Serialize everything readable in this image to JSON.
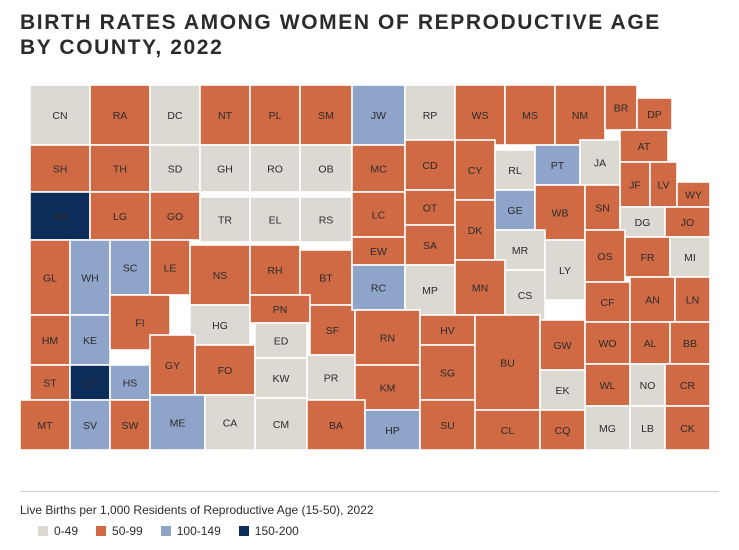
{
  "title": {
    "line1": "BIRTH RATES AMONG WOMEN OF REPRODUCTIVE AGE",
    "line2": "BY COUNTY, 2022"
  },
  "colors": {
    "0-49": "#dcd8d2",
    "50-99": "#cf6a45",
    "100-149": "#8fa4c9",
    "150-200": "#0c2d5a"
  },
  "legend": {
    "title": "Live Births per 1,000 Residents of Reproductive Age (15-50), 2022",
    "items": [
      {
        "label": "0-49",
        "cls": "0-49"
      },
      {
        "label": "50-99",
        "cls": "50-99"
      },
      {
        "label": "100-149",
        "cls": "100-149"
      },
      {
        "label": "150-200",
        "cls": "150-200"
      }
    ]
  },
  "counties": [
    {
      "abbr": "CN",
      "cls": "0-49"
    },
    {
      "abbr": "RA",
      "cls": "50-99"
    },
    {
      "abbr": "DC",
      "cls": "0-49"
    },
    {
      "abbr": "NT",
      "cls": "50-99"
    },
    {
      "abbr": "PL",
      "cls": "50-99"
    },
    {
      "abbr": "SM",
      "cls": "50-99"
    },
    {
      "abbr": "JW",
      "cls": "100-149"
    },
    {
      "abbr": "RP",
      "cls": "0-49"
    },
    {
      "abbr": "WS",
      "cls": "50-99"
    },
    {
      "abbr": "MS",
      "cls": "50-99"
    },
    {
      "abbr": "NM",
      "cls": "50-99"
    },
    {
      "abbr": "BR",
      "cls": "50-99"
    },
    {
      "abbr": "DP",
      "cls": "50-99"
    },
    {
      "abbr": "SH",
      "cls": "50-99"
    },
    {
      "abbr": "TH",
      "cls": "50-99"
    },
    {
      "abbr": "SD",
      "cls": "0-49"
    },
    {
      "abbr": "GH",
      "cls": "0-49"
    },
    {
      "abbr": "RO",
      "cls": "0-49"
    },
    {
      "abbr": "OB",
      "cls": "0-49"
    },
    {
      "abbr": "MC",
      "cls": "50-99"
    },
    {
      "abbr": "CD",
      "cls": "50-99"
    },
    {
      "abbr": "CY",
      "cls": "50-99"
    },
    {
      "abbr": "RL",
      "cls": "0-49"
    },
    {
      "abbr": "PT",
      "cls": "100-149"
    },
    {
      "abbr": "JA",
      "cls": "0-49"
    },
    {
      "abbr": "AT",
      "cls": "50-99"
    },
    {
      "abbr": "JF",
      "cls": "50-99"
    },
    {
      "abbr": "LV",
      "cls": "50-99"
    },
    {
      "abbr": "WY",
      "cls": "50-99"
    },
    {
      "abbr": "WA",
      "cls": "150-200"
    },
    {
      "abbr": "LG",
      "cls": "50-99"
    },
    {
      "abbr": "GO",
      "cls": "50-99"
    },
    {
      "abbr": "TR",
      "cls": "0-49"
    },
    {
      "abbr": "EL",
      "cls": "0-49"
    },
    {
      "abbr": "RS",
      "cls": "0-49"
    },
    {
      "abbr": "LC",
      "cls": "50-99"
    },
    {
      "abbr": "OT",
      "cls": "50-99"
    },
    {
      "abbr": "DK",
      "cls": "50-99"
    },
    {
      "abbr": "GE",
      "cls": "100-149"
    },
    {
      "abbr": "WB",
      "cls": "50-99"
    },
    {
      "abbr": "SN",
      "cls": "50-99"
    },
    {
      "abbr": "DG",
      "cls": "0-49"
    },
    {
      "abbr": "JO",
      "cls": "50-99"
    },
    {
      "abbr": "GL",
      "cls": "50-99"
    },
    {
      "abbr": "WH",
      "cls": "100-149"
    },
    {
      "abbr": "SC",
      "cls": "100-149"
    },
    {
      "abbr": "LE",
      "cls": "50-99"
    },
    {
      "abbr": "NS",
      "cls": "50-99"
    },
    {
      "abbr": "RH",
      "cls": "50-99"
    },
    {
      "abbr": "BT",
      "cls": "50-99"
    },
    {
      "abbr": "EW",
      "cls": "50-99"
    },
    {
      "abbr": "SA",
      "cls": "50-99"
    },
    {
      "abbr": "MR",
      "cls": "0-49"
    },
    {
      "abbr": "LY",
      "cls": "0-49"
    },
    {
      "abbr": "OS",
      "cls": "50-99"
    },
    {
      "abbr": "FR",
      "cls": "50-99"
    },
    {
      "abbr": "MI",
      "cls": "0-49"
    },
    {
      "abbr": "HM",
      "cls": "50-99"
    },
    {
      "abbr": "KE",
      "cls": "100-149"
    },
    {
      "abbr": "FI",
      "cls": "50-99"
    },
    {
      "abbr": "HG",
      "cls": "0-49"
    },
    {
      "abbr": "PN",
      "cls": "50-99"
    },
    {
      "abbr": "SF",
      "cls": "50-99"
    },
    {
      "abbr": "RC",
      "cls": "100-149"
    },
    {
      "abbr": "MP",
      "cls": "0-49"
    },
    {
      "abbr": "MN",
      "cls": "50-99"
    },
    {
      "abbr": "CS",
      "cls": "0-49"
    },
    {
      "abbr": "CF",
      "cls": "50-99"
    },
    {
      "abbr": "AN",
      "cls": "50-99"
    },
    {
      "abbr": "LN",
      "cls": "50-99"
    },
    {
      "abbr": "ST",
      "cls": "50-99"
    },
    {
      "abbr": "GT",
      "cls": "150-200"
    },
    {
      "abbr": "HS",
      "cls": "100-149"
    },
    {
      "abbr": "GY",
      "cls": "50-99"
    },
    {
      "abbr": "FO",
      "cls": "50-99"
    },
    {
      "abbr": "ED",
      "cls": "0-49"
    },
    {
      "abbr": "KW",
      "cls": "0-49"
    },
    {
      "abbr": "PR",
      "cls": "0-49"
    },
    {
      "abbr": "RN",
      "cls": "50-99"
    },
    {
      "abbr": "HV",
      "cls": "50-99"
    },
    {
      "abbr": "KM",
      "cls": "50-99"
    },
    {
      "abbr": "SG",
      "cls": "50-99"
    },
    {
      "abbr": "BU",
      "cls": "50-99"
    },
    {
      "abbr": "GW",
      "cls": "50-99"
    },
    {
      "abbr": "WO",
      "cls": "50-99"
    },
    {
      "abbr": "AL",
      "cls": "50-99"
    },
    {
      "abbr": "BB",
      "cls": "50-99"
    },
    {
      "abbr": "WL",
      "cls": "50-99"
    },
    {
      "abbr": "NO",
      "cls": "0-49"
    },
    {
      "abbr": "CR",
      "cls": "50-99"
    },
    {
      "abbr": "EK",
      "cls": "0-49"
    },
    {
      "abbr": "MT",
      "cls": "50-99"
    },
    {
      "abbr": "SV",
      "cls": "100-149"
    },
    {
      "abbr": "SW",
      "cls": "50-99"
    },
    {
      "abbr": "ME",
      "cls": "100-149"
    },
    {
      "abbr": "CA",
      "cls": "0-49"
    },
    {
      "abbr": "CM",
      "cls": "0-49"
    },
    {
      "abbr": "BA",
      "cls": "50-99"
    },
    {
      "abbr": "HP",
      "cls": "100-149"
    },
    {
      "abbr": "SU",
      "cls": "50-99"
    },
    {
      "abbr": "CL",
      "cls": "50-99"
    },
    {
      "abbr": "CQ",
      "cls": "50-99"
    },
    {
      "abbr": "MG",
      "cls": "0-49"
    },
    {
      "abbr": "LB",
      "cls": "0-49"
    },
    {
      "abbr": "CK",
      "cls": "50-99"
    }
  ]
}
